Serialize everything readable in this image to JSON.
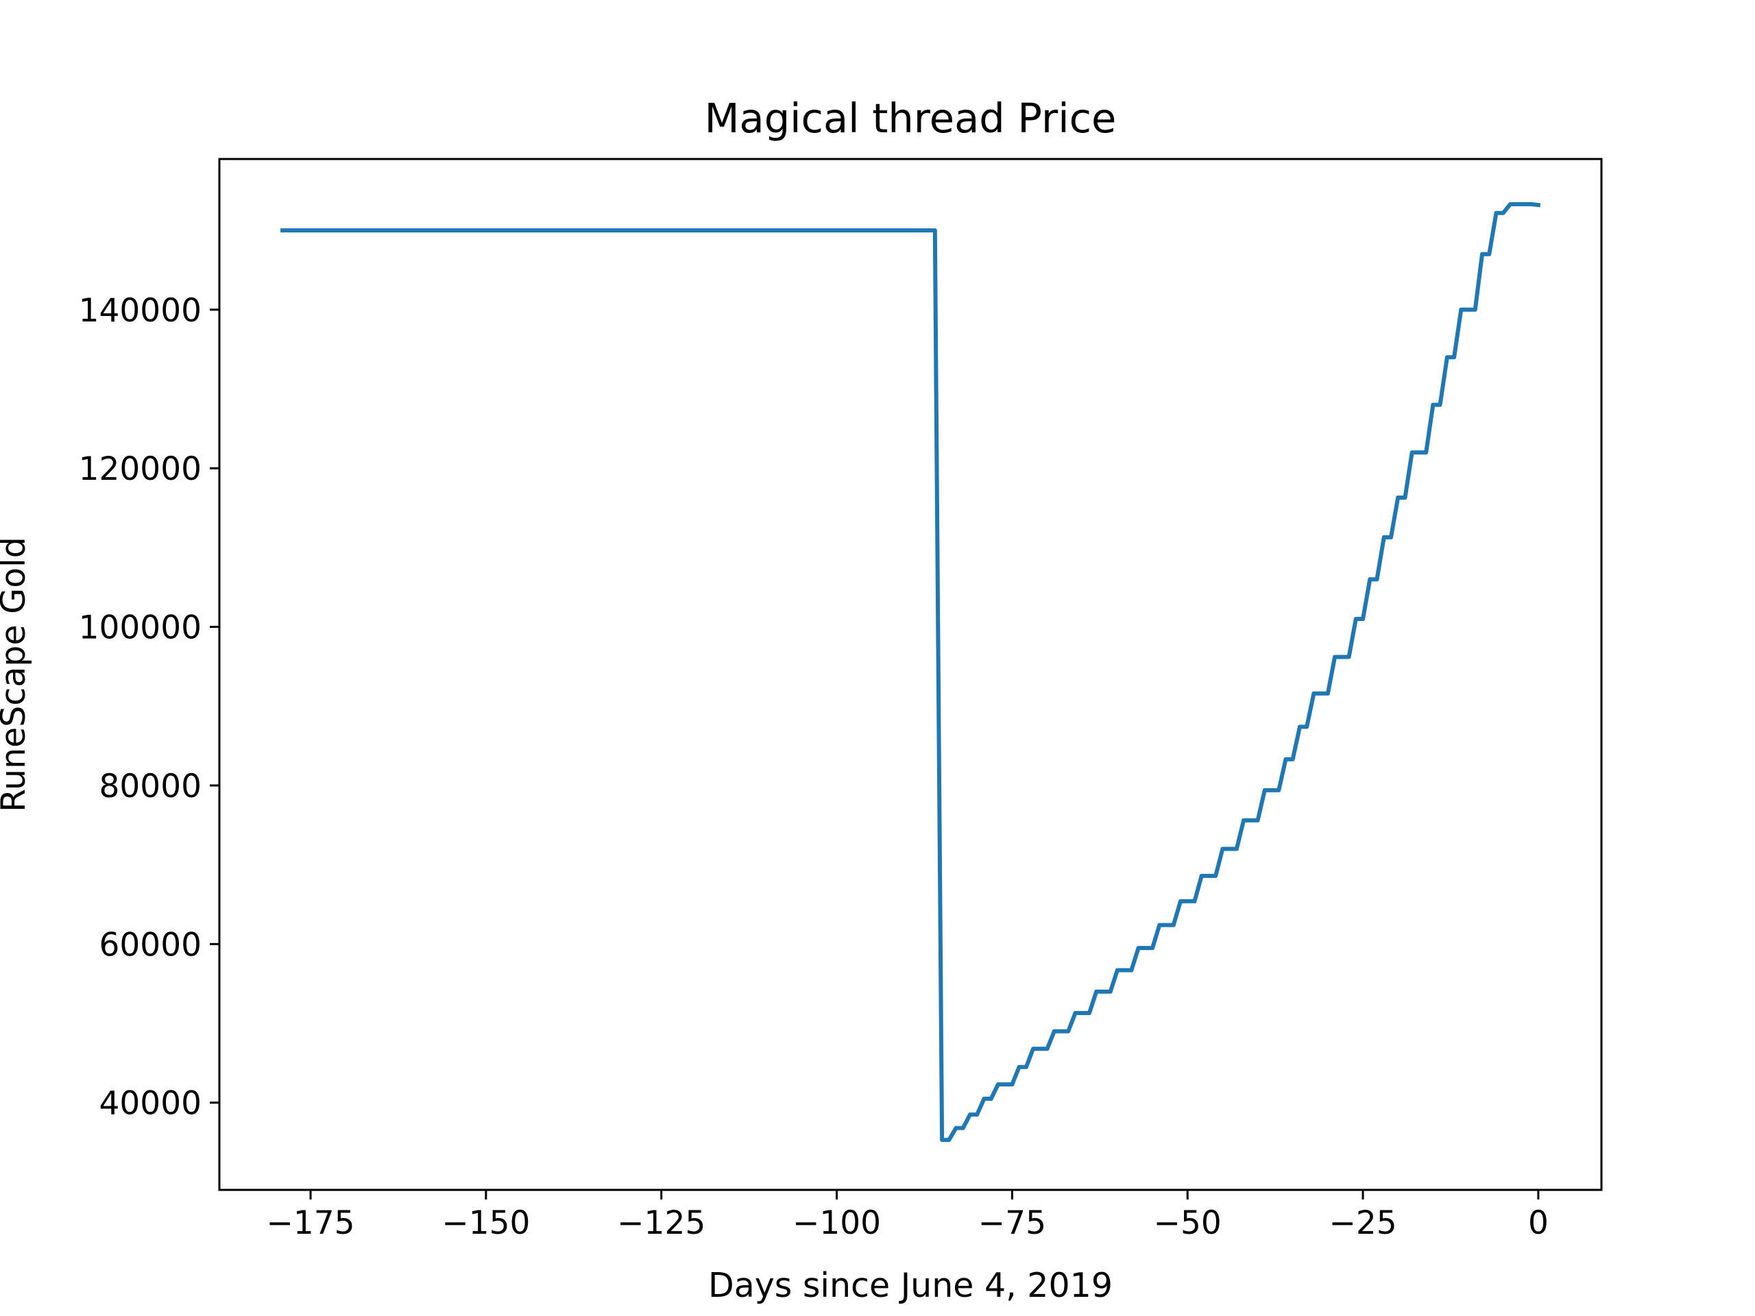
{
  "chart_data": {
    "type": "line",
    "title": "Magical thread Price",
    "xlabel": "Days since June 4, 2019",
    "ylabel": "RuneScape Gold",
    "xlim": [
      -188,
      9
    ],
    "ylim": [
      29000,
      159000
    ],
    "xticks": [
      -175,
      -150,
      -125,
      -100,
      -75,
      -50,
      -25,
      0
    ],
    "xtick_labels": [
      "−175",
      "−150",
      "−125",
      "−100",
      "−75",
      "−50",
      "−25",
      "0"
    ],
    "yticks": [
      40000,
      60000,
      80000,
      100000,
      120000,
      140000
    ],
    "ytick_labels": [
      "40000",
      "60000",
      "80000",
      "100000",
      "120000",
      "140000"
    ],
    "grid": false,
    "color": "#1f77b4",
    "series": [
      {
        "x": [
          -179,
          -86,
          -85,
          -84,
          -83,
          -82,
          -81,
          -80,
          -79,
          -78,
          -77,
          -76,
          -75,
          -74,
          -73,
          -72,
          -71,
          -70,
          -69,
          -68,
          -67,
          -66,
          -65,
          -64,
          -63,
          -62,
          -61,
          -60,
          -59,
          -58,
          -57,
          -56,
          -55,
          -54,
          -53,
          -52,
          -51,
          -50,
          -49,
          -48,
          -47,
          -46,
          -45,
          -44,
          -43,
          -42,
          -41,
          -40,
          -39,
          -38,
          -37,
          -36,
          -35,
          -34,
          -33,
          -32,
          -31,
          -30,
          -29,
          -28,
          -27,
          -26,
          -25,
          -24,
          -23,
          -22,
          -21,
          -20,
          -19,
          -18,
          -17,
          -16,
          -15,
          -14,
          -13,
          -12,
          -11,
          -10,
          -9,
          -8,
          -7,
          -6,
          -5,
          -4,
          -3,
          -2,
          -1,
          0
        ],
        "y": [
          150000,
          150000,
          35300,
          35300,
          36800,
          36800,
          38500,
          38500,
          40500,
          40500,
          42300,
          42300,
          42300,
          44500,
          44500,
          46800,
          46800,
          46800,
          49000,
          49000,
          49000,
          51300,
          51300,
          51300,
          54000,
          54000,
          54000,
          56700,
          56700,
          56700,
          59500,
          59500,
          59500,
          62400,
          62400,
          62400,
          65400,
          65400,
          65400,
          68600,
          68600,
          68600,
          72000,
          72000,
          72000,
          75600,
          75600,
          75600,
          79400,
          79400,
          79400,
          83300,
          83300,
          87400,
          87400,
          91600,
          91600,
          91600,
          96200,
          96200,
          96200,
          101000,
          101000,
          106000,
          106000,
          111300,
          111300,
          116300,
          116300,
          122000,
          122000,
          122000,
          128000,
          128000,
          134000,
          134000,
          140000,
          140000,
          140000,
          147000,
          147000,
          152200,
          152200,
          153300,
          153300,
          153300,
          153300,
          153200
        ]
      }
    ]
  }
}
